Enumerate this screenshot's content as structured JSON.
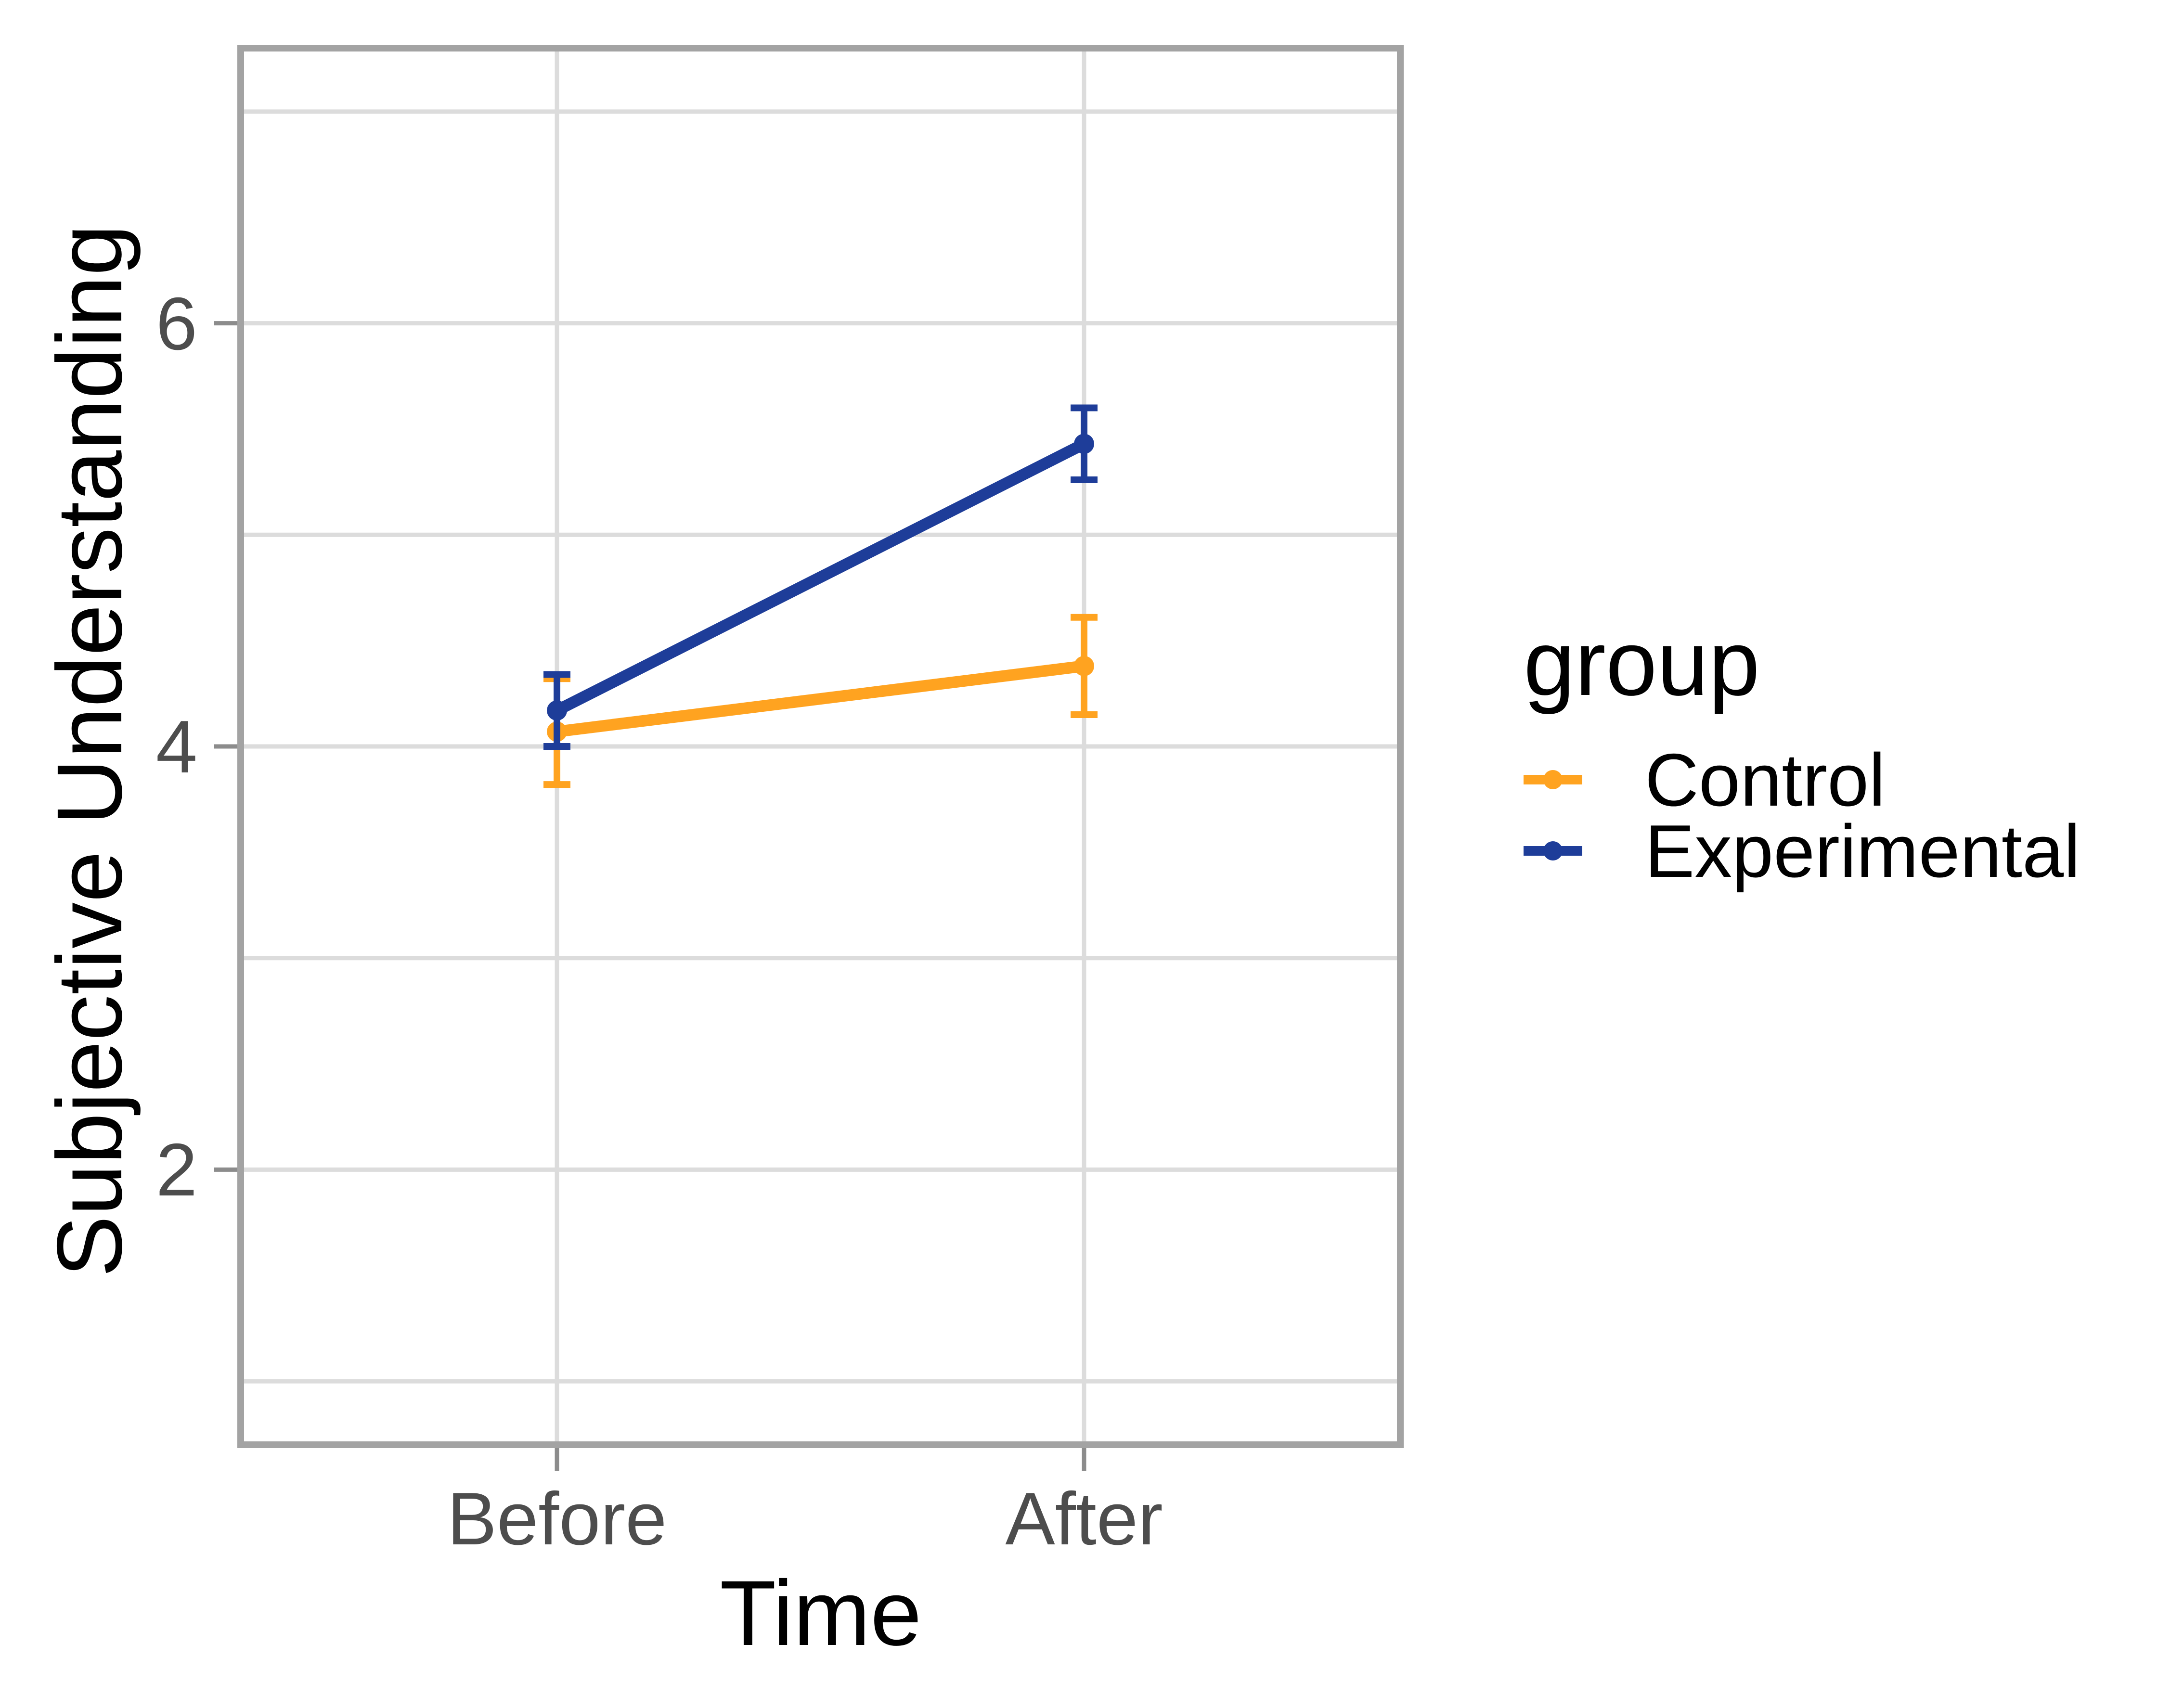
{
  "chart_data": {
    "type": "line",
    "title": "",
    "xlabel": "Time",
    "ylabel": "Subjective Understanding",
    "categories": [
      "Before",
      "After"
    ],
    "series": [
      {
        "name": "Control",
        "color": "#FFA320",
        "values": [
          4.07,
          4.38
        ],
        "ci_lower": [
          3.82,
          4.15
        ],
        "ci_upper": [
          4.32,
          4.61
        ]
      },
      {
        "name": "Experimental",
        "color": "#1E3D99",
        "values": [
          4.17,
          5.43
        ],
        "ci_lower": [
          4.0,
          5.26
        ],
        "ci_upper": [
          4.34,
          5.6
        ]
      }
    ],
    "yticks": [
      {
        "value": 2,
        "label": "2"
      },
      {
        "value": 4,
        "label": "4"
      },
      {
        "value": 6,
        "label": "6"
      }
    ],
    "gridlines_y": [
      1,
      2,
      3,
      4,
      5,
      6,
      7
    ],
    "ylim": [
      0.7,
      7.3
    ],
    "xlim": [
      0.4,
      2.6
    ],
    "grid": true,
    "error_bars": true,
    "legend": {
      "title": "group",
      "position": "right"
    }
  }
}
